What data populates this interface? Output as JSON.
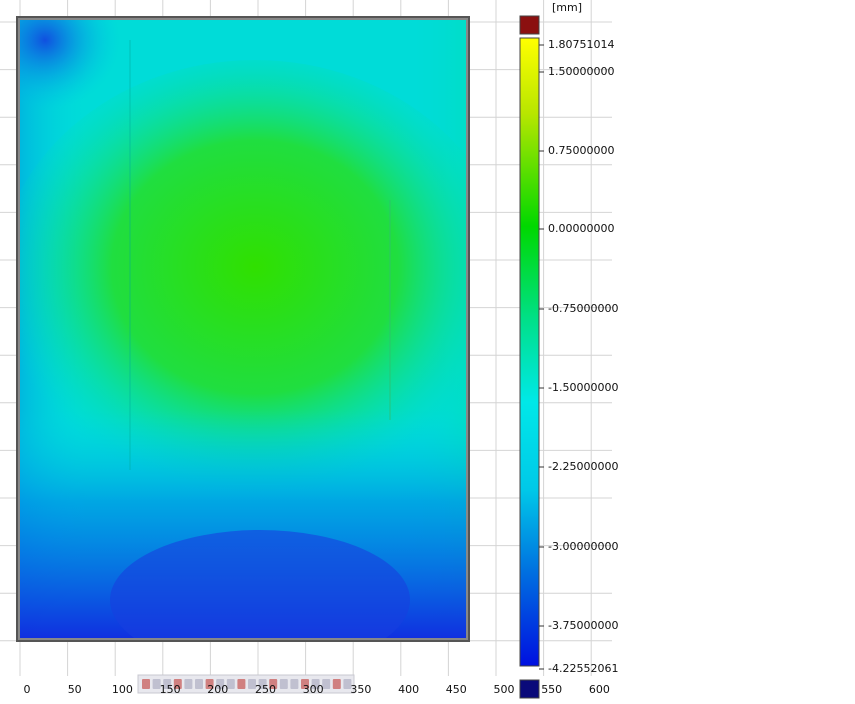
{
  "colorbar": {
    "unit": "[mm]",
    "labels": [
      "1.80751014",
      "1.50000000",
      "0.75000000",
      "0.00000000",
      "-0.75000000",
      "-1.50000000",
      "-2.25000000",
      "-3.00000000",
      "-3.75000000",
      "-4.22552061"
    ]
  },
  "x_axis": {
    "labels": [
      "0",
      "50",
      "100",
      "150",
      "200",
      "250",
      "300",
      "350",
      "400",
      "450",
      "500",
      "550",
      "600"
    ]
  }
}
